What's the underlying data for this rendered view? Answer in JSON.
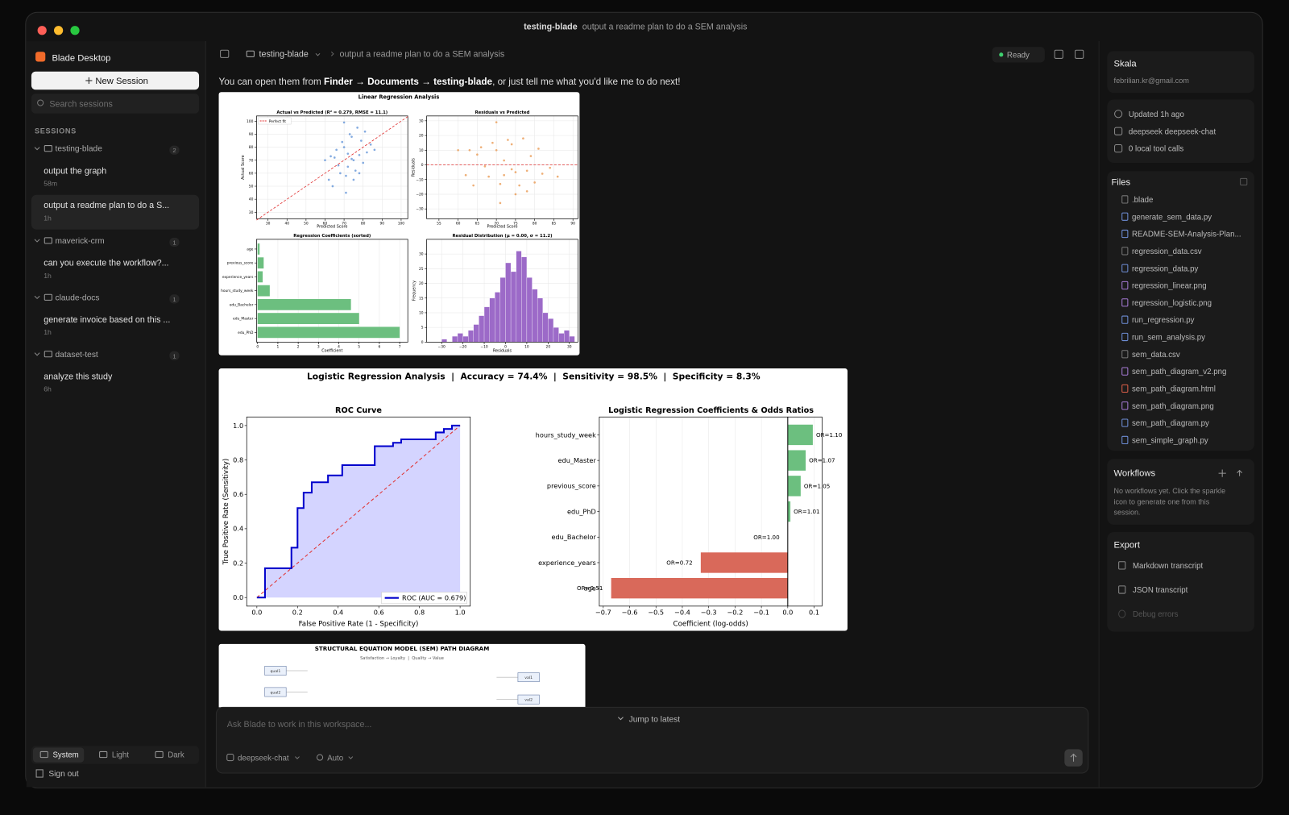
{
  "window": {
    "title": "testing-blade",
    "subtitle": "output a readme plan to do a SEM analysis"
  },
  "sidebar": {
    "app": "Blade Desktop",
    "new_session": "New Session",
    "search_placeholder": "Search sessions",
    "sessions_label": "SESSIONS",
    "groups": [
      {
        "name": "testing-blade",
        "count": 2,
        "sessions": [
          {
            "title": "output the graph",
            "time": "58m"
          },
          {
            "title": "output a readme plan to do a S...",
            "time": "1h"
          }
        ]
      },
      {
        "name": "maverick-crm",
        "count": 1,
        "sessions": [
          {
            "title": "can you execute the workflow?...",
            "time": "1h"
          }
        ]
      },
      {
        "name": "claude-docs",
        "count": 1,
        "sessions": [
          {
            "title": "generate invoice based on this ...",
            "time": "1h"
          }
        ]
      },
      {
        "name": "dataset-test",
        "count": 1,
        "sessions": [
          {
            "title": "analyze this study",
            "time": "6h"
          }
        ]
      }
    ],
    "themes": [
      "System",
      "Light",
      "Dark"
    ],
    "sign_out": "Sign out"
  },
  "topbar": {
    "folder": "testing-blade",
    "chat": "output a readme plan to do a SEM analysis",
    "status": "Ready"
  },
  "message": {
    "before": "You can open them from ",
    "path": "Finder → Documents → testing-blade",
    "after": ", or just tell me what you'd like me to do next!"
  },
  "linear_figure": {
    "title": "Linear Regression Analysis",
    "scatter": {
      "title": "Actual vs Predicted (R² = 0.279, RMSE = 11.1)",
      "xlabel": "Predicted Score",
      "ylabel": "Actual Score",
      "legend": "Perfect fit",
      "color": "#5b8fd6",
      "xlim": [
        24,
        103.5
      ],
      "ylim": [
        25,
        104
      ],
      "xticks": [
        30,
        40,
        50,
        60,
        70,
        80,
        90,
        100
      ],
      "yticks": [
        30,
        40,
        50,
        60,
        70,
        80,
        90,
        100
      ],
      "x": [
        62,
        65,
        68,
        70,
        72,
        74,
        75,
        77,
        78,
        80,
        66,
        71,
        73,
        76,
        79,
        82,
        64,
        69,
        74,
        81,
        67,
        70,
        72,
        75,
        60,
        84,
        78,
        63,
        86,
        71
      ],
      "y": [
        55,
        72,
        60,
        80,
        65,
        88,
        70,
        95,
        74,
        68,
        78,
        58,
        90,
        62,
        85,
        76,
        50,
        84,
        71,
        92,
        66,
        99,
        75,
        55,
        70,
        82,
        60,
        73,
        78,
        45
      ]
    },
    "residuals": {
      "title": "Residuals vs Predicted",
      "xlabel": "Predicted Score",
      "ylabel": "Residuals",
      "color": "#e8944a",
      "xlim": [
        51.8,
        91.3
      ],
      "ylim": [
        -36.7,
        33.3
      ],
      "xticks": [
        55,
        60,
        65,
        70,
        75,
        80,
        85,
        90
      ],
      "yticks": [
        {
          "value": -30,
          "label": "−30"
        },
        {
          "value": -20,
          "label": "−20"
        },
        {
          "value": -10,
          "label": "−10"
        },
        0,
        10,
        20,
        30
      ],
      "x": [
        62,
        65,
        68,
        70,
        72,
        74,
        75,
        77,
        78,
        80,
        66,
        71,
        73,
        76,
        79,
        82,
        64,
        69,
        74,
        81,
        67,
        70,
        72,
        75,
        60,
        84,
        78,
        63,
        86,
        71
      ],
      "y": [
        -7,
        7,
        -8,
        10,
        -7,
        14,
        -5,
        18,
        -4,
        -12,
        12,
        -13,
        17,
        -14,
        6,
        -6,
        -14,
        15,
        -3,
        11,
        -1,
        29,
        3,
        -20,
        10,
        -2,
        -18,
        10,
        -8,
        -26
      ]
    },
    "coefficients": {
      "title": "Regression Coefficients (sorted)",
      "xlabel": "Coefficient",
      "color": "#6cbf7f",
      "categories": [
        "age",
        "previous_score",
        "experience_years",
        "hours_study_week",
        "edu_Bachelor",
        "edu_Master",
        "edu_PhD"
      ],
      "values": [
        0.1,
        0.3,
        0.25,
        0.6,
        4.6,
        5.0,
        7.0
      ],
      "xlim": [
        -0.05,
        7.4
      ],
      "xticks": [
        0,
        1,
        2,
        3,
        4,
        5,
        6,
        7
      ]
    },
    "histogram": {
      "title": "Residual Distribution (μ = 0.00, σ = 11.2)",
      "xlabel": "Residuals",
      "ylabel": "Frequency",
      "color": "#9c6ac8",
      "xlim": [
        -37,
        34
      ],
      "ylim": [
        0,
        35
      ],
      "bins": [
        -30,
        -27.5,
        -25,
        -22.5,
        -20,
        -17.5,
        -15,
        -12.5,
        -10,
        -7.5,
        -5,
        -2.5,
        0,
        2.5,
        5,
        7.5,
        10,
        12.5,
        15,
        17.5,
        20,
        22.5,
        25,
        27.5,
        30,
        32.5
      ],
      "counts": [
        1,
        0,
        2,
        3,
        2,
        4,
        6,
        9,
        12,
        15,
        17,
        22,
        27,
        24,
        31,
        29,
        22,
        18,
        15,
        10,
        8,
        5,
        3,
        4,
        2
      ],
      "xticks": [
        {
          "value": -30,
          "label": "−30"
        },
        {
          "value": -20,
          "label": "−20"
        },
        {
          "value": -10,
          "label": "−10"
        },
        0,
        10,
        20,
        30
      ],
      "yticks": [
        0,
        5,
        10,
        15,
        20,
        25,
        30
      ]
    }
  },
  "logistic_figure": {
    "title": "Logistic Regression Analysis  |  Accuracy = 74.4%  |  Sensitivity = 98.5%  |  Specificity = 8.3%",
    "roc": {
      "title": "ROC Curve",
      "xlabel": "False Positive Rate (1 - Specificity)",
      "ylabel": "True Positive Rate (Sensitivity)",
      "legend": "ROC (AUC = 0.679)",
      "color": "#0000cc",
      "xlim": [
        -0.05,
        1.05
      ],
      "ylim": [
        -0.05,
        1.05
      ],
      "xticks": [
        {
          "value": 0,
          "label": "0.0"
        },
        {
          "value": 0.2,
          "label": "0.2"
        },
        {
          "value": 0.4,
          "label": "0.4"
        },
        {
          "value": 0.6,
          "label": "0.6"
        },
        {
          "value": 0.8,
          "label": "0.8"
        },
        {
          "value": 1,
          "label": "1.0"
        }
      ],
      "yticks": [
        {
          "value": 0,
          "label": "0.0"
        },
        {
          "value": 0.2,
          "label": "0.2"
        },
        {
          "value": 0.4,
          "label": "0.4"
        },
        {
          "value": 0.6,
          "label": "0.6"
        },
        {
          "value": 0.8,
          "label": "0.8"
        },
        {
          "value": 1,
          "label": "1.0"
        }
      ],
      "fpr": [
        0,
        0.04,
        0.04,
        0.17,
        0.17,
        0.2,
        0.2,
        0.23,
        0.23,
        0.27,
        0.27,
        0.35,
        0.35,
        0.42,
        0.42,
        0.58,
        0.58,
        0.67,
        0.67,
        0.71,
        0.71,
        0.88,
        0.88,
        0.92,
        0.92,
        0.96,
        0.96,
        1
      ],
      "tpr": [
        0,
        0,
        0.17,
        0.17,
        0.29,
        0.29,
        0.52,
        0.52,
        0.61,
        0.61,
        0.67,
        0.67,
        0.71,
        0.71,
        0.77,
        0.77,
        0.88,
        0.88,
        0.9,
        0.9,
        0.92,
        0.92,
        0.96,
        0.96,
        0.98,
        0.98,
        1,
        1
      ]
    },
    "coefficients": {
      "title": "Logistic Regression Coefficients & Odds Ratios",
      "xlabel": "Coefficient (log-odds)",
      "positive_color": "#6cbf7f",
      "negative_color": "#d9695a",
      "categories": [
        "hours_study_week",
        "edu_Master",
        "previous_score",
        "edu_PhD",
        "edu_Bachelor",
        "experience_years",
        "age"
      ],
      "values": [
        0.095,
        0.068,
        0.049,
        0.01,
        0,
        -0.33,
        -0.67
      ],
      "value_labels": [
        "OR=1.10",
        "OR=1.07",
        "OR=1.05",
        "OR=1.01",
        "OR=1.00",
        "OR=0.72",
        "OR=0.51"
      ],
      "xlim": [
        -0.715,
        0.13
      ],
      "xticks": [
        {
          "value": -0.7,
          "label": "−0.7"
        },
        {
          "value": -0.6,
          "label": "−0.6"
        },
        {
          "value": -0.5,
          "label": "−0.5"
        },
        {
          "value": -0.4,
          "label": "−0.4"
        },
        {
          "value": -0.3,
          "label": "−0.3"
        },
        {
          "value": -0.2,
          "label": "−0.2"
        },
        {
          "value": -0.1,
          "label": "−0.1"
        },
        {
          "value": 0,
          "label": "0.0"
        },
        0.1
      ]
    }
  },
  "sem_figure": {
    "title": "STRUCTURAL EQUATION MODEL (SEM) PATH DIAGRAM",
    "subtitle": "Satisfaction → Loyalty  |  Quality → Value",
    "nodes": [
      "qual1",
      "qual2",
      "val1",
      "val2"
    ]
  },
  "composer": {
    "placeholder": "Ask Blade to work in this workspace...",
    "jump": "Jump to latest",
    "model": "deepseek-chat",
    "mode": "Auto"
  },
  "profile": {
    "name": "Skala",
    "email": "febrilian.kr@gmail.com"
  },
  "meta": [
    "Updated 1h ago",
    "deepseek deepseek-chat",
    "0 local tool calls"
  ],
  "files": {
    "title": "Files",
    "items": [
      ".blade",
      "generate_sem_data.py",
      "README-SEM-Analysis-Plan...",
      "regression_data.csv",
      "regression_data.py",
      "regression_linear.png",
      "regression_logistic.png",
      "run_regression.py",
      "run_sem_analysis.py",
      "sem_data.csv",
      "sem_path_diagram_v2.png",
      "sem_path_diagram.html",
      "sem_path_diagram.png",
      "sem_path_diagram.py",
      "sem_simple_graph.py"
    ]
  },
  "workflows": {
    "title": "Workflows",
    "lines": [
      "No workflows yet. Click the sparkle",
      "icon to generate one from this",
      "session."
    ]
  },
  "export": {
    "title": "Export",
    "items": [
      "Markdown transcript",
      "JSON transcript",
      "Debug errors"
    ]
  }
}
